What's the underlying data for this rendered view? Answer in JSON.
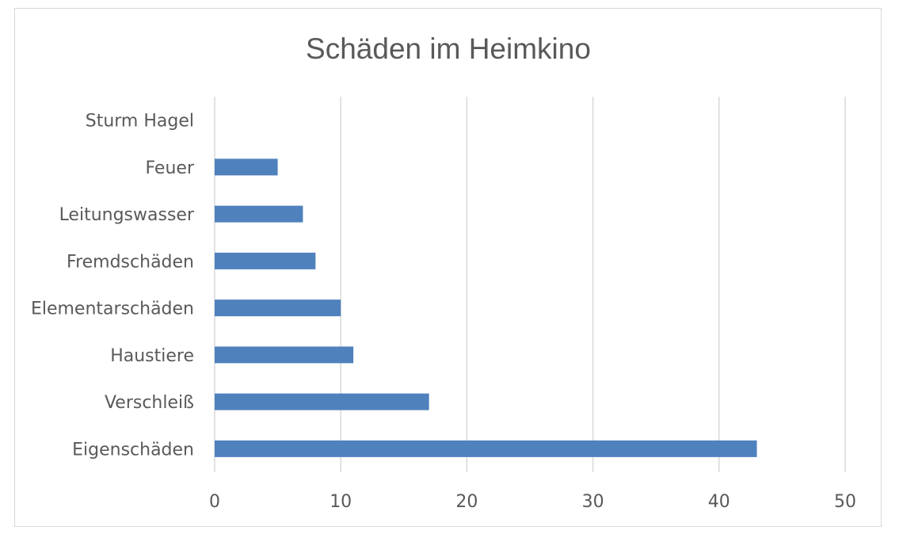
{
  "chart_data": {
    "type": "bar",
    "orientation": "horizontal",
    "title": "Schäden im Heimkino",
    "categories": [
      "Eigenschäden",
      "Verschleiß",
      "Haustiere",
      "Elementarschäden",
      "Fremdschäden",
      "Leitungswasser",
      "Feuer",
      "Sturm Hagel"
    ],
    "values": [
      43,
      17,
      11,
      10,
      8,
      7,
      5,
      0
    ],
    "xlim": [
      0,
      50
    ],
    "x_ticks": [
      0,
      10,
      20,
      30,
      40,
      50
    ],
    "grid": "vertical",
    "legend": "none",
    "bar_color": "#4f81bd"
  }
}
